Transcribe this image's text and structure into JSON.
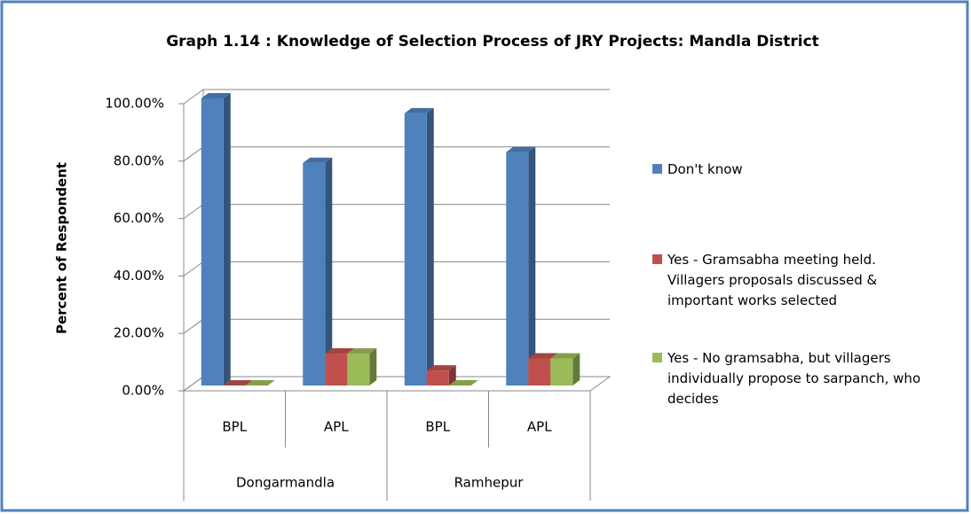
{
  "chart_data": {
    "type": "bar3d",
    "title": "Graph 1.14 : Knowledge of Selection Process of JRY Projects: Mandla District",
    "y_label": "Percent of Respondent",
    "categories": [
      "BPL",
      "APL",
      "BPL",
      "APL"
    ],
    "groups": [
      "Dongarmandla",
      "Ramhepur"
    ],
    "series": [
      {
        "name": "Don't know",
        "color": "#4f81bd",
        "values": [
          100,
          77.5,
          94.8,
          81.3
        ]
      },
      {
        "name": "Yes - Gramsabha meeting held. Villagers proposals discussed & important works selected",
        "color": "#c0504d",
        "values": [
          0,
          11.1,
          5.2,
          9.4
        ]
      },
      {
        "name": "Yes - No gramsabha, but villagers individually propose to sarpanch, who decides",
        "color": "#9bbb59",
        "values": [
          0,
          11.1,
          0,
          9.4
        ]
      }
    ],
    "ylim": [
      0,
      100
    ],
    "yticks": [
      {
        "value": 0,
        "label": "0.00%"
      },
      {
        "value": 20,
        "label": "20.00%"
      },
      {
        "value": 40,
        "label": "40.00%"
      },
      {
        "value": 60,
        "label": "60.00%"
      },
      {
        "value": 80,
        "label": "80.00%"
      },
      {
        "value": 100,
        "label": "100.00%"
      }
    ],
    "grid": true,
    "legend": "right"
  }
}
